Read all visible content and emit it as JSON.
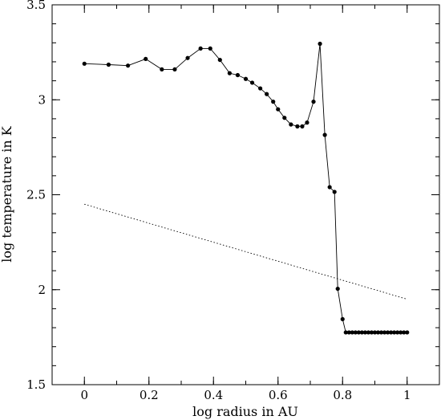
{
  "chart_data": {
    "type": "line",
    "title": "",
    "xlabel": "log radius in AU",
    "ylabel": "log temperature in K",
    "xlim": [
      -0.1,
      1.1
    ],
    "ylim": [
      1.5,
      3.5
    ],
    "x_ticks": [
      0,
      0.2,
      0.4,
      0.6,
      0.8,
      1
    ],
    "x_tick_labels": [
      "0",
      "0.2",
      "0.4",
      "0.6",
      "0.8",
      "1"
    ],
    "y_ticks": [
      1.5,
      2,
      2.5,
      3,
      3.5
    ],
    "y_tick_labels": [
      "1.5",
      "2",
      "2.5",
      "3",
      "3.5"
    ],
    "grid": false,
    "series": [
      {
        "style": "solid-with-markers",
        "color": "#000000",
        "points": [
          [
            0.0,
            3.19
          ],
          [
            0.075,
            3.185
          ],
          [
            0.135,
            3.18
          ],
          [
            0.19,
            3.215
          ],
          [
            0.24,
            3.16
          ],
          [
            0.28,
            3.16
          ],
          [
            0.32,
            3.22
          ],
          [
            0.36,
            3.27
          ],
          [
            0.39,
            3.27
          ],
          [
            0.42,
            3.21
          ],
          [
            0.45,
            3.14
          ],
          [
            0.475,
            3.13
          ],
          [
            0.5,
            3.11
          ],
          [
            0.52,
            3.09
          ],
          [
            0.545,
            3.06
          ],
          [
            0.565,
            3.03
          ],
          [
            0.585,
            2.99
          ],
          [
            0.6,
            2.95
          ],
          [
            0.62,
            2.905
          ],
          [
            0.64,
            2.87
          ],
          [
            0.66,
            2.86
          ],
          [
            0.675,
            2.86
          ],
          [
            0.69,
            2.88
          ],
          [
            0.71,
            2.99
          ],
          [
            0.73,
            3.295
          ],
          [
            0.745,
            2.815
          ],
          [
            0.76,
            2.54
          ],
          [
            0.775,
            2.515
          ],
          [
            0.785,
            2.005
          ],
          [
            0.8,
            1.845
          ],
          [
            0.81,
            1.775
          ],
          [
            0.82,
            1.775
          ],
          [
            0.83,
            1.775
          ],
          [
            0.84,
            1.775
          ],
          [
            0.85,
            1.775
          ],
          [
            0.86,
            1.775
          ],
          [
            0.87,
            1.775
          ],
          [
            0.88,
            1.775
          ],
          [
            0.89,
            1.775
          ],
          [
            0.9,
            1.775
          ],
          [
            0.91,
            1.775
          ],
          [
            0.92,
            1.775
          ],
          [
            0.93,
            1.775
          ],
          [
            0.94,
            1.775
          ],
          [
            0.95,
            1.775
          ],
          [
            0.96,
            1.775
          ],
          [
            0.97,
            1.775
          ],
          [
            0.98,
            1.775
          ],
          [
            0.99,
            1.775
          ],
          [
            1.0,
            1.775
          ]
        ]
      },
      {
        "style": "dotted",
        "color": "#000000",
        "points": [
          [
            0.0,
            2.45
          ],
          [
            1.0,
            1.95
          ]
        ]
      }
    ]
  }
}
